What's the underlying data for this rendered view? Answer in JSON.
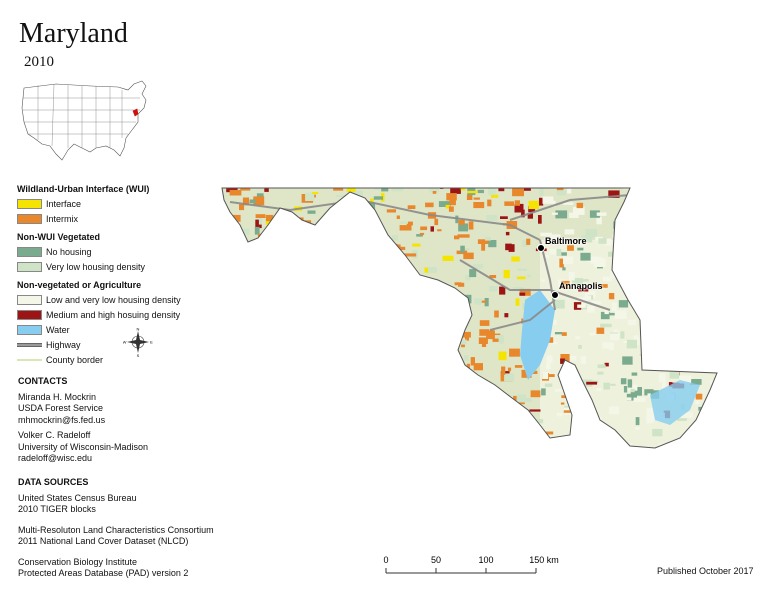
{
  "title": "Maryland",
  "year": "2010",
  "legend": {
    "wui_header": "Wildland-Urban Interface (WUI)",
    "nonwui_header": "Non-WUI Vegetated",
    "nonveg_header": "Non-vegetated or Agriculture",
    "items": [
      {
        "label": "Interface",
        "color": "#f5e400"
      },
      {
        "label": "Intermix",
        "color": "#e8872b"
      },
      {
        "label": "No housing",
        "color": "#7aab8e"
      },
      {
        "label": "Very low housing density",
        "color": "#cfe3c6"
      },
      {
        "label": "Low and very low housing density",
        "color": "#f4f6e8"
      },
      {
        "label": "Medium and high hosuing density",
        "color": "#9c1414"
      },
      {
        "label": "Water",
        "color": "#86cdf0"
      },
      {
        "label": "Highway",
        "color": "#9a9a9a"
      },
      {
        "label": "County border",
        "color": "#d9e6b5"
      }
    ]
  },
  "compass": {
    "n": "N",
    "s": "S",
    "e": "E",
    "w": "W"
  },
  "contacts": {
    "header": "CONTACTS",
    "person1": [
      "Miranda H. Mockrin",
      "USDA Forest Service",
      "mhmockrin@fs.fed.us"
    ],
    "person2": [
      "Volker C. Radeloff",
      "University of Wisconsin-Madison",
      "radeloff@wisc.edu"
    ]
  },
  "sources": {
    "header": "DATA SOURCES",
    "s1": [
      "United States Census Bureau",
      "2010 TIGER blocks"
    ],
    "s2": [
      "Multi-Resoluton Land Characteristics Consortium",
      "2011 National Land Cover Dataset (NLCD)"
    ],
    "s3": [
      "Conservation Biology Institute",
      "Protected Areas Database (PAD) version 2"
    ]
  },
  "cities": {
    "baltimore": "Baltimore",
    "annapolis": "Annapolis"
  },
  "scale_labels": [
    "0",
    "50",
    "100",
    "150 km"
  ],
  "published": "Published October 2017"
}
